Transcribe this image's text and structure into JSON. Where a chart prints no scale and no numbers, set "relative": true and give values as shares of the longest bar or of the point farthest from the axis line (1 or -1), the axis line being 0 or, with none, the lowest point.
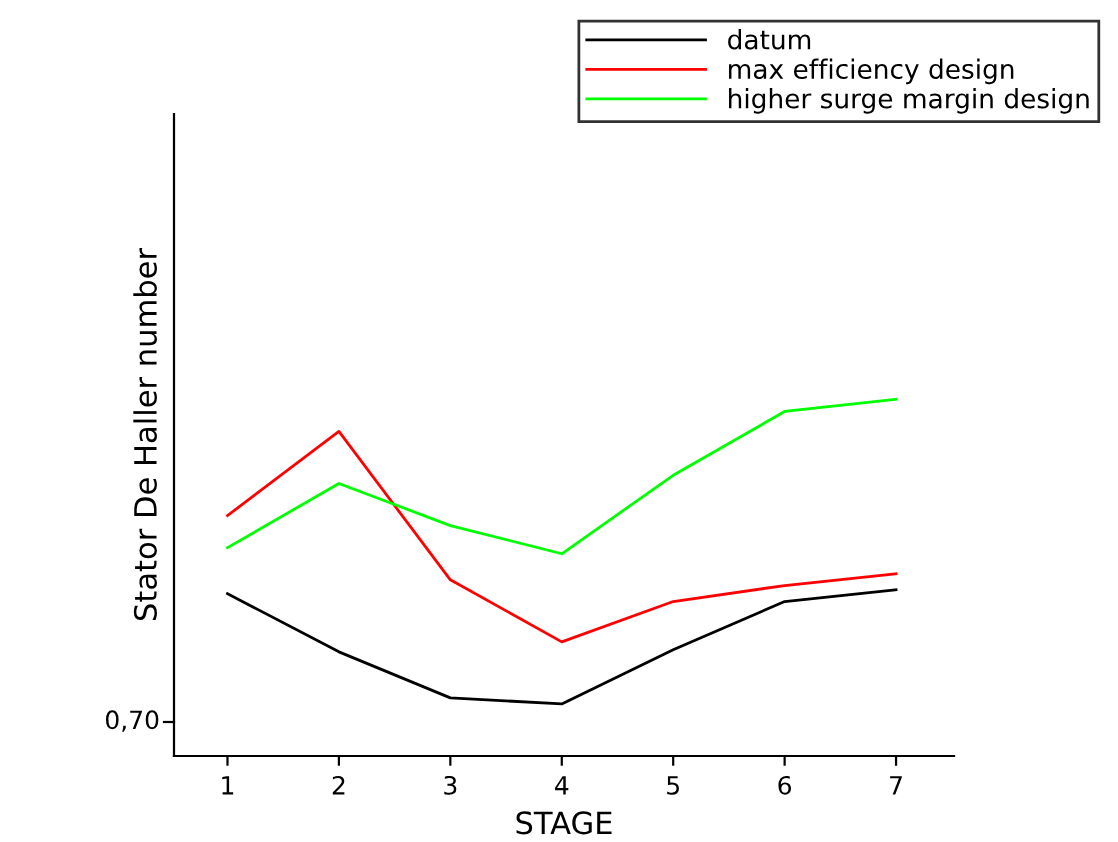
{
  "chart_data": {
    "type": "line",
    "relative": true,
    "xlabel": "STAGE",
    "ylabel": "Stator De Haller number",
    "categories": [
      "1",
      "2",
      "3",
      "4",
      "5",
      "6",
      "7"
    ],
    "series": [
      {
        "name": "datum",
        "color": "#000000",
        "values": [
          0.455,
          0.292,
          0.163,
          0.146,
          0.298,
          0.433,
          0.466
        ]
      },
      {
        "name": "max efficiency design",
        "color": "#ff0000",
        "values": [
          0.674,
          0.91,
          0.494,
          0.32,
          0.433,
          0.478,
          0.511
        ]
      },
      {
        "name": "higher surge margin design",
        "color": "#00ff00",
        "values": [
          0.584,
          0.764,
          0.646,
          0.567,
          0.787,
          0.966,
          1.0
        ]
      }
    ],
    "annotations": [
      "0,70"
    ],
    "legend": "top right",
    "grid": false,
    "marker": "none",
    "line_style": "solid"
  }
}
